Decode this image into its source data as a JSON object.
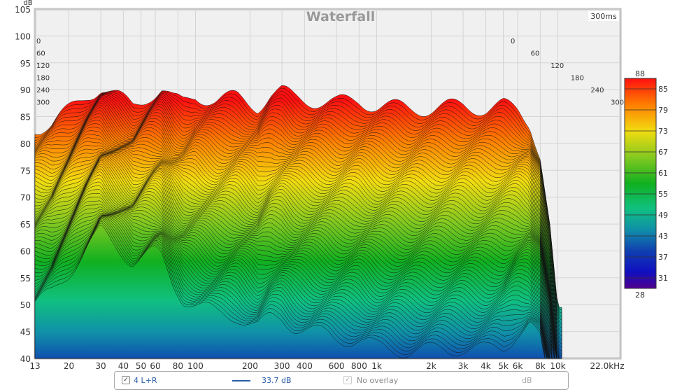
{
  "chart_data": {
    "type": "waterfall",
    "title": "Waterfall",
    "ylabel": "dB",
    "ylim": [
      40,
      105
    ],
    "yticks": [
      40,
      45,
      50,
      55,
      60,
      65,
      70,
      75,
      80,
      85,
      90,
      95,
      100,
      105
    ],
    "xlim_hz": [
      13,
      22000
    ],
    "xticks": [
      {
        "v": 13,
        "l": "13"
      },
      {
        "v": 20,
        "l": "20"
      },
      {
        "v": 30,
        "l": "30"
      },
      {
        "v": 40,
        "l": "40"
      },
      {
        "v": 50,
        "l": "50"
      },
      {
        "v": 60,
        "l": "60"
      },
      {
        "v": 80,
        "l": "80"
      },
      {
        "v": 100,
        "l": "100"
      },
      {
        "v": 200,
        "l": "200"
      },
      {
        "v": 300,
        "l": "300"
      },
      {
        "v": 400,
        "l": "400"
      },
      {
        "v": 600,
        "l": "600"
      },
      {
        "v": 800,
        "l": "800"
      },
      {
        "v": 1000,
        "l": "1k"
      },
      {
        "v": 2000,
        "l": "2k"
      },
      {
        "v": 3000,
        "l": "3k"
      },
      {
        "v": 4000,
        "l": "4k"
      },
      {
        "v": 5000,
        "l": "5k"
      },
      {
        "v": 6000,
        "l": "6k"
      },
      {
        "v": 8000,
        "l": "8k"
      },
      {
        "v": 10000,
        "l": "10k"
      },
      {
        "v": 22000,
        "l": "22.0kHz"
      }
    ],
    "time_labels": [
      "0",
      "60",
      "120",
      "180",
      "240",
      "300"
    ],
    "time_range_label": "300ms",
    "response_0ms": [
      [
        13,
        83
      ],
      [
        16,
        83.5
      ],
      [
        20,
        86
      ],
      [
        25,
        89
      ],
      [
        30,
        90.5
      ],
      [
        35,
        89
      ],
      [
        45,
        87
      ],
      [
        55,
        89
      ],
      [
        65,
        90
      ],
      [
        75,
        88
      ],
      [
        85,
        87.5
      ],
      [
        100,
        89
      ],
      [
        130,
        88
      ],
      [
        170,
        88.5
      ],
      [
        220,
        87
      ],
      [
        260,
        89
      ],
      [
        300,
        89.5
      ],
      [
        350,
        88.5
      ],
      [
        450,
        88
      ],
      [
        600,
        87.5
      ],
      [
        800,
        88
      ],
      [
        1000,
        87
      ],
      [
        1500,
        86.5
      ],
      [
        2000,
        86.5
      ],
      [
        3000,
        87
      ],
      [
        4000,
        86.5
      ],
      [
        5000,
        87
      ],
      [
        6000,
        86
      ],
      [
        7000,
        84
      ],
      [
        8000,
        78
      ],
      [
        9000,
        65
      ],
      [
        10000,
        48
      ]
    ],
    "decay_db_per_ms": [
      [
        13,
        0.11
      ],
      [
        30,
        0.09
      ],
      [
        60,
        0.1
      ],
      [
        100,
        0.13
      ],
      [
        300,
        0.14
      ],
      [
        1000,
        0.15
      ],
      [
        5000,
        0.15
      ],
      [
        10000,
        0.1
      ]
    ],
    "colorbar": {
      "max": "88",
      "min": "28",
      "ticks": [
        "85",
        "79",
        "73",
        "67",
        "61",
        "55",
        "49",
        "43",
        "37",
        "31"
      ]
    }
  },
  "legend": {
    "checked": "✓",
    "name": "4 L+R",
    "value": "33.7 dB",
    "overlay": "No overlay",
    "unit": "dB"
  }
}
